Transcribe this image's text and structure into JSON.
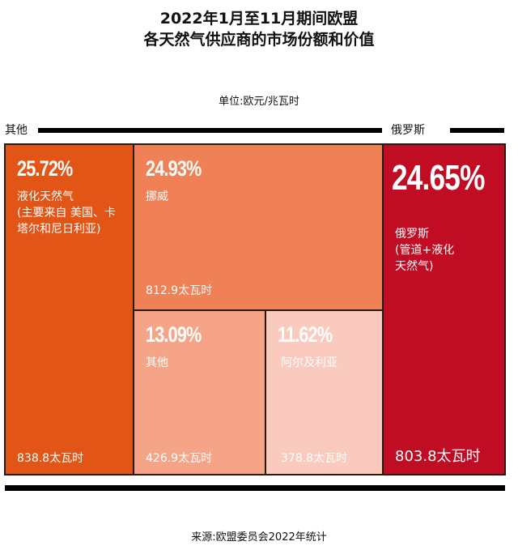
{
  "chart_data": {
    "type": "treemap",
    "title": [
      "2022年1月至11月期间欧盟",
      "各天然气供应商的市场份额和价值"
    ],
    "unit": "单位:欧元/兆瓦时",
    "groups": [
      "其他",
      "俄罗斯"
    ],
    "cells": [
      {
        "pct": "25.72%",
        "share": 25.72,
        "name": "液化天然气\n(主要来自 美国、卡\n塔尔和尼日利亚)",
        "value": "838.8太瓦时",
        "group": "其他",
        "color": "#e35516"
      },
      {
        "pct": "24.93%",
        "share": 24.93,
        "name": "挪威",
        "value": "812.9太瓦时",
        "group": "其他",
        "color": "#f08055"
      },
      {
        "pct": "13.09%",
        "share": 13.09,
        "name": "其他",
        "value": "426.9太瓦时",
        "group": "其他",
        "color": "#f6a488"
      },
      {
        "pct": "11.62%",
        "share": 11.62,
        "name": "阿尔及利亚",
        "value": "378.8太瓦时",
        "group": "其他",
        "color": "#f9cabd"
      },
      {
        "pct": "24.65%",
        "share": 24.65,
        "name": "俄罗斯\n(管道+液化\n天然气)",
        "value": "803.8太瓦时",
        "group": "俄罗斯",
        "color": "#c00d24"
      }
    ],
    "source": "来源:欧盟委员会2022年统计"
  }
}
